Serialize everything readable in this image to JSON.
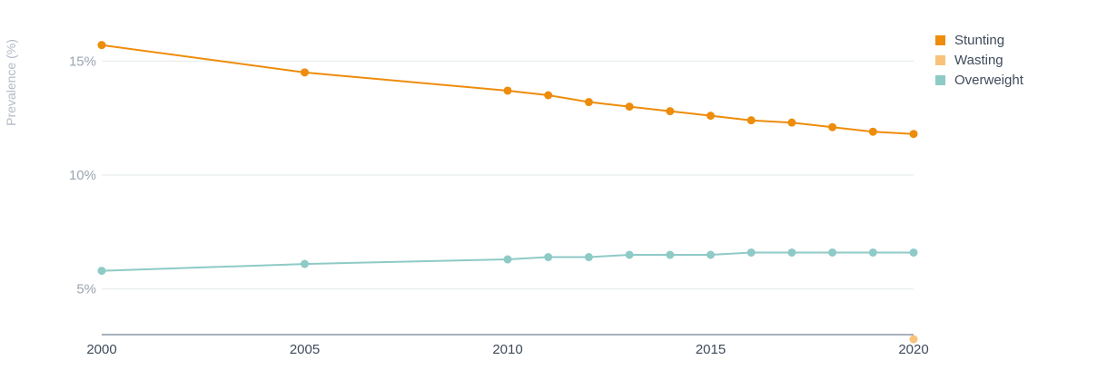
{
  "chart_data": {
    "type": "line",
    "title": "",
    "xlabel": "",
    "ylabel": "Prevalence (%)",
    "x": [
      2000,
      2005,
      2010,
      2011,
      2012,
      2013,
      2014,
      2015,
      2016,
      2017,
      2018,
      2019,
      2020
    ],
    "xlim": [
      2000,
      2020
    ],
    "ylim": [
      3,
      17
    ],
    "x_ticks": [
      {
        "value": 2000,
        "label": "2000"
      },
      {
        "value": 2005,
        "label": "2005"
      },
      {
        "value": 2010,
        "label": "2010"
      },
      {
        "value": 2015,
        "label": "2015"
      },
      {
        "value": 2020,
        "label": "2020"
      }
    ],
    "y_ticks": [
      {
        "value": 5,
        "label": "5%"
      },
      {
        "value": 10,
        "label": "10%"
      },
      {
        "value": 15,
        "label": "15%"
      }
    ],
    "grid": "horizontal",
    "legend_position": "top-right",
    "series": [
      {
        "name": "Stunting",
        "color": "#ee8c0b",
        "points": [
          {
            "x": 2000,
            "y": 15.7
          },
          {
            "x": 2005,
            "y": 14.5
          },
          {
            "x": 2010,
            "y": 13.7
          },
          {
            "x": 2011,
            "y": 13.5
          },
          {
            "x": 2012,
            "y": 13.2
          },
          {
            "x": 2013,
            "y": 13.0
          },
          {
            "x": 2014,
            "y": 12.8
          },
          {
            "x": 2015,
            "y": 12.6
          },
          {
            "x": 2016,
            "y": 12.4
          },
          {
            "x": 2017,
            "y": 12.3
          },
          {
            "x": 2018,
            "y": 12.1
          },
          {
            "x": 2019,
            "y": 11.9
          },
          {
            "x": 2020,
            "y": 11.8
          }
        ]
      },
      {
        "name": "Wasting",
        "color": "#f9c37b",
        "points": [
          {
            "x": 2020,
            "y": 2.8
          }
        ]
      },
      {
        "name": "Overweight",
        "color": "#8ecac6",
        "points": [
          {
            "x": 2000,
            "y": 5.8
          },
          {
            "x": 2005,
            "y": 6.1
          },
          {
            "x": 2010,
            "y": 6.3
          },
          {
            "x": 2011,
            "y": 6.4
          },
          {
            "x": 2012,
            "y": 6.4
          },
          {
            "x": 2013,
            "y": 6.5
          },
          {
            "x": 2014,
            "y": 6.5
          },
          {
            "x": 2015,
            "y": 6.5
          },
          {
            "x": 2016,
            "y": 6.6
          },
          {
            "x": 2017,
            "y": 6.6
          },
          {
            "x": 2018,
            "y": 6.6
          },
          {
            "x": 2019,
            "y": 6.6
          },
          {
            "x": 2020,
            "y": 6.6
          }
        ]
      }
    ]
  }
}
